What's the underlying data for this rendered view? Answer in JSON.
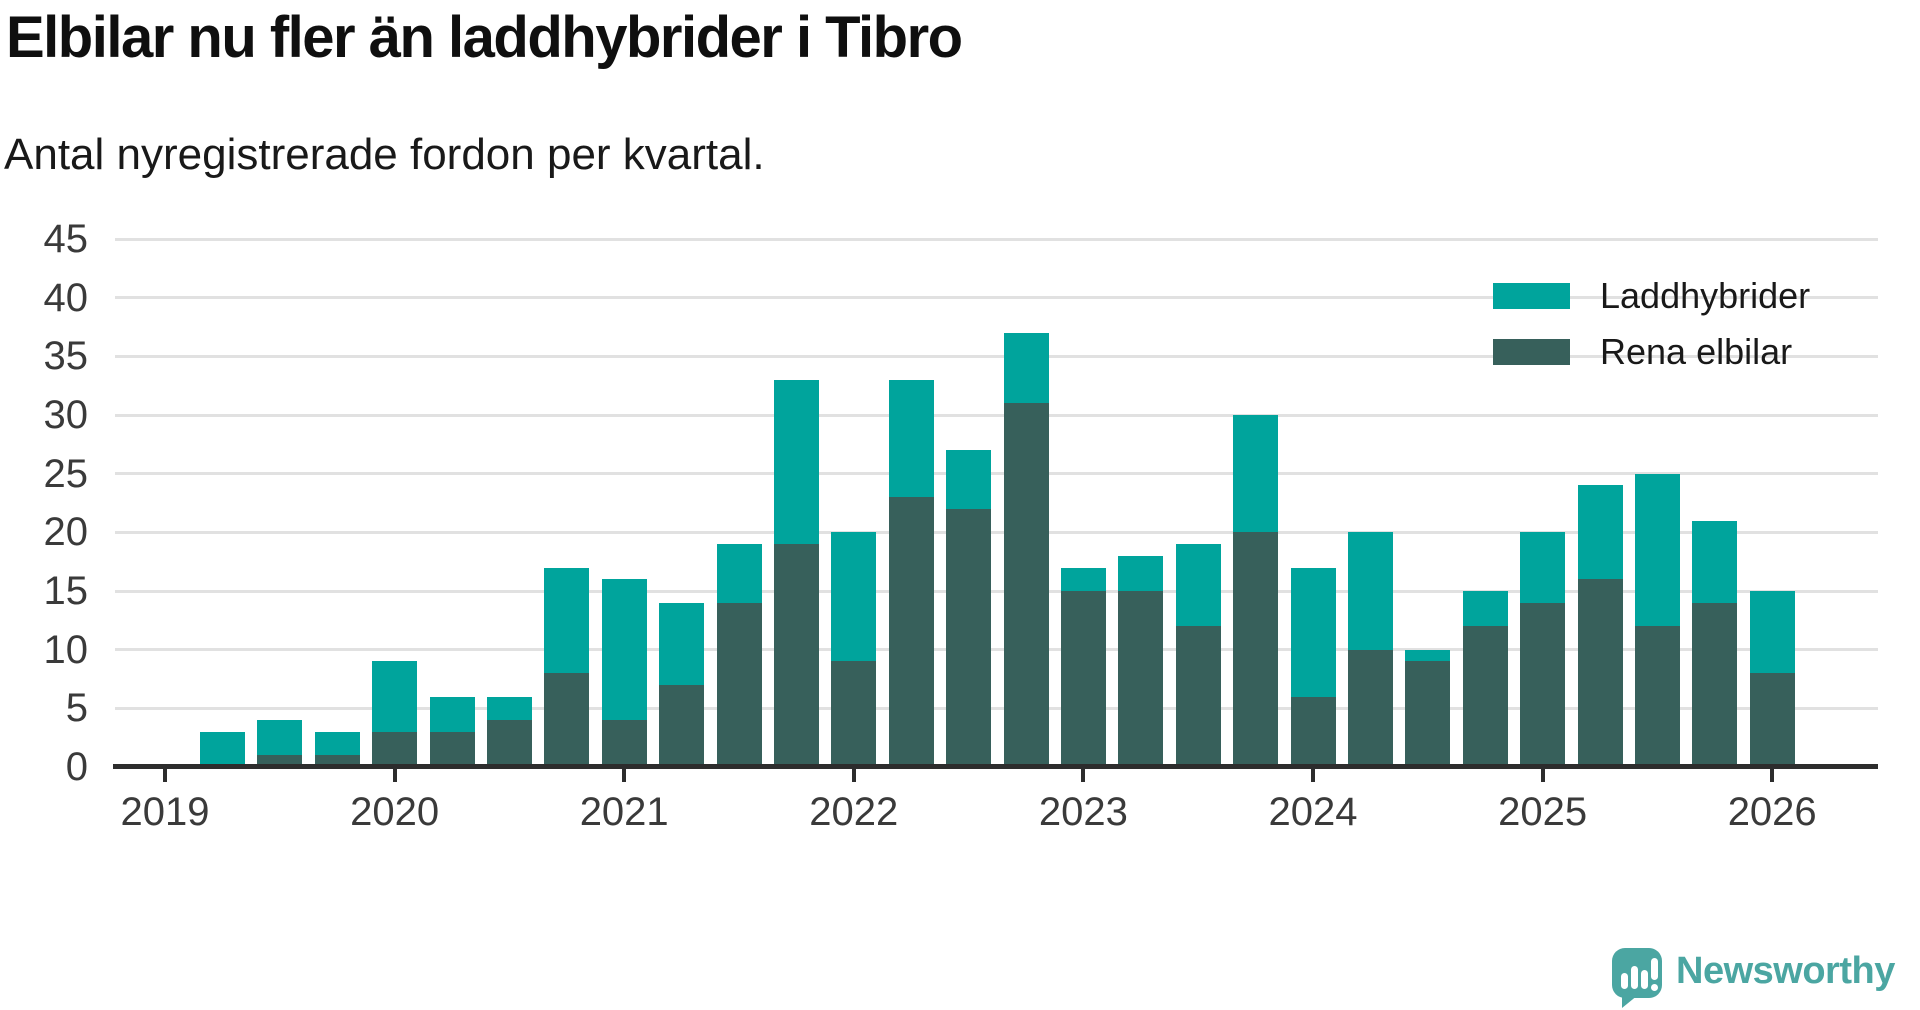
{
  "title": "Elbilar nu fler än laddhybrider i Tibro",
  "subtitle": "Antal nyregistrerade fordon per kvartal.",
  "legend": {
    "items": [
      {
        "label": "Laddhybrider",
        "color": "#00a49c"
      },
      {
        "label": "Rena elbilar",
        "color": "#37605b"
      }
    ]
  },
  "colors": {
    "laddhybrider": "#00a49c",
    "rena_elbilar": "#37605b",
    "gridline": "#e1e1e1",
    "axis": "#2d2d2d",
    "axis_text": "#3a3a3a",
    "title_text": "#0f0f0f",
    "brand": "#4ba6a2"
  },
  "branding": {
    "wordmark": "Newsworthy",
    "color": "#4ba6a2",
    "icon": "newsworthy-speech-bubble-chart-icon"
  },
  "chart_data": {
    "type": "bar",
    "stacked": true,
    "title": "Elbilar nu fler än laddhybrider i Tibro",
    "subtitle": "Antal nyregistrerade fordon per kvartal.",
    "xlabel": "",
    "ylabel": "",
    "ylim": [
      0,
      45
    ],
    "ytick_step": 5,
    "grid": "horizontal",
    "legend_position": "top-right",
    "x_tick_years": [
      2019,
      2020,
      2021,
      2022,
      2023,
      2024,
      2025,
      2026
    ],
    "series": [
      {
        "name": "Rena elbilar",
        "color": "#37605b",
        "stack_order": "bottom"
      },
      {
        "name": "Laddhybrider",
        "color": "#00a49c",
        "stack_order": "top"
      }
    ],
    "quarters": [
      {
        "year": 2019,
        "q": 2,
        "rena_elbilar": 0,
        "laddhybrider": 3
      },
      {
        "year": 2019,
        "q": 3,
        "rena_elbilar": 1,
        "laddhybrider": 3
      },
      {
        "year": 2019,
        "q": 4,
        "rena_elbilar": 1,
        "laddhybrider": 2
      },
      {
        "year": 2020,
        "q": 1,
        "rena_elbilar": 3,
        "laddhybrider": 6
      },
      {
        "year": 2020,
        "q": 2,
        "rena_elbilar": 3,
        "laddhybrider": 3
      },
      {
        "year": 2020,
        "q": 3,
        "rena_elbilar": 4,
        "laddhybrider": 2
      },
      {
        "year": 2020,
        "q": 4,
        "rena_elbilar": 8,
        "laddhybrider": 9
      },
      {
        "year": 2021,
        "q": 1,
        "rena_elbilar": 4,
        "laddhybrider": 12
      },
      {
        "year": 2021,
        "q": 2,
        "rena_elbilar": 7,
        "laddhybrider": 7
      },
      {
        "year": 2021,
        "q": 3,
        "rena_elbilar": 14,
        "laddhybrider": 5
      },
      {
        "year": 2021,
        "q": 4,
        "rena_elbilar": 19,
        "laddhybrider": 14
      },
      {
        "year": 2022,
        "q": 1,
        "rena_elbilar": 9,
        "laddhybrider": 11
      },
      {
        "year": 2022,
        "q": 2,
        "rena_elbilar": 23,
        "laddhybrider": 10
      },
      {
        "year": 2022,
        "q": 3,
        "rena_elbilar": 22,
        "laddhybrider": 5
      },
      {
        "year": 2022,
        "q": 4,
        "rena_elbilar": 31,
        "laddhybrider": 6
      },
      {
        "year": 2023,
        "q": 1,
        "rena_elbilar": 15,
        "laddhybrider": 2
      },
      {
        "year": 2023,
        "q": 2,
        "rena_elbilar": 15,
        "laddhybrider": 3
      },
      {
        "year": 2023,
        "q": 3,
        "rena_elbilar": 12,
        "laddhybrider": 7
      },
      {
        "year": 2023,
        "q": 4,
        "rena_elbilar": 20,
        "laddhybrider": 10
      },
      {
        "year": 2024,
        "q": 1,
        "rena_elbilar": 6,
        "laddhybrider": 11
      },
      {
        "year": 2024,
        "q": 2,
        "rena_elbilar": 10,
        "laddhybrider": 10
      },
      {
        "year": 2024,
        "q": 3,
        "rena_elbilar": 9,
        "laddhybrider": 1
      },
      {
        "year": 2024,
        "q": 4,
        "rena_elbilar": 12,
        "laddhybrider": 3
      },
      {
        "year": 2025,
        "q": 1,
        "rena_elbilar": 14,
        "laddhybrider": 6
      },
      {
        "year": 2025,
        "q": 2,
        "rena_elbilar": 16,
        "laddhybrider": 8
      },
      {
        "year": 2025,
        "q": 3,
        "rena_elbilar": 12,
        "laddhybrider": 13
      },
      {
        "year": 2025,
        "q": 4,
        "rena_elbilar": 14,
        "laddhybrider": 7
      },
      {
        "year": 2026,
        "q": 1,
        "rena_elbilar": 8,
        "laddhybrider": 7
      }
    ]
  }
}
